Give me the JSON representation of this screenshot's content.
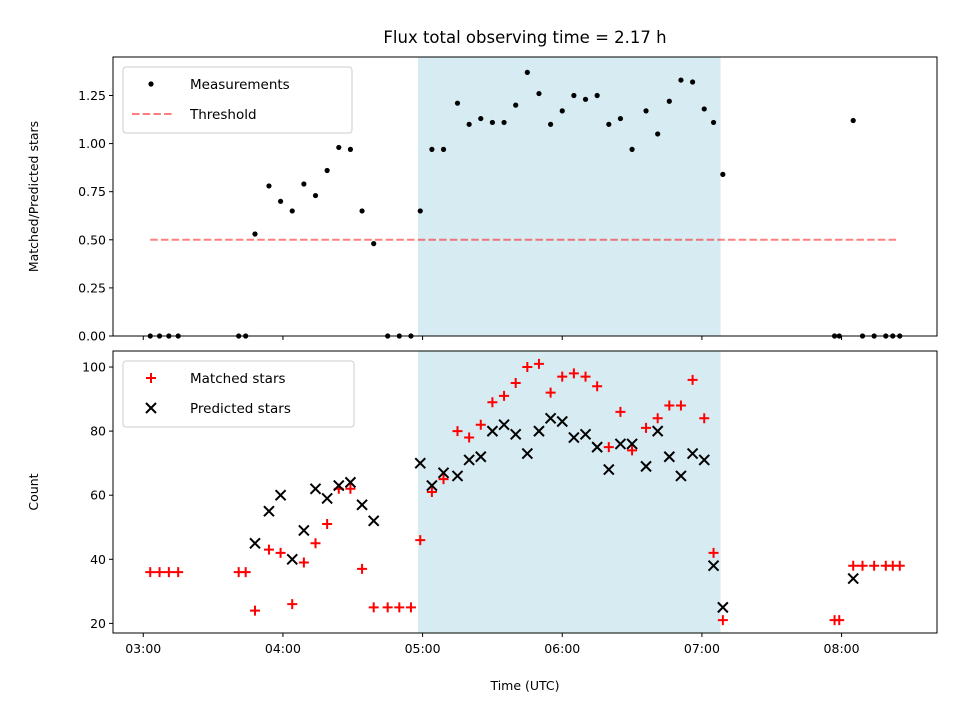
{
  "title": "Flux total observing time = 2.17 h",
  "colors": {
    "shade": "#add8e6",
    "measurement": "#000000",
    "threshold": "#ff0000",
    "matched": "#ff0000",
    "predicted": "#000000"
  },
  "chart_data": [
    {
      "type": "scatter",
      "ylabel": "Matched/Predicted stars",
      "xlim": [
        "02:47",
        "08:41"
      ],
      "ylim": [
        0,
        1.45
      ],
      "yticks": [
        0,
        0.25,
        0.5,
        0.75,
        1.0,
        1.25
      ],
      "ytick_labels": [
        "0.00",
        "0.25",
        "0.50",
        "0.75",
        "1.00",
        "1.25"
      ],
      "shaded_span": [
        "04:58",
        "07:08"
      ],
      "legend": {
        "placement": "upper left",
        "entries": [
          "Measurements",
          "Threshold"
        ]
      },
      "threshold": {
        "name": "Threshold",
        "y": 0.5,
        "x": [
          "03:03",
          "08:24"
        ],
        "style": "dashed"
      },
      "series": [
        {
          "name": "Measurements",
          "points": [
            [
              "03:03",
              0.0
            ],
            [
              "03:07",
              0.0
            ],
            [
              "03:11",
              0.0
            ],
            [
              "03:15",
              0.0
            ],
            [
              "03:41",
              0.0
            ],
            [
              "03:44",
              0.0
            ],
            [
              "03:48",
              0.53
            ],
            [
              "03:54",
              0.78
            ],
            [
              "03:59",
              0.7
            ],
            [
              "04:04",
              0.65
            ],
            [
              "04:09",
              0.79
            ],
            [
              "04:14",
              0.73
            ],
            [
              "04:19",
              0.86
            ],
            [
              "04:24",
              0.98
            ],
            [
              "04:29",
              0.97
            ],
            [
              "04:34",
              0.65
            ],
            [
              "04:39",
              0.48
            ],
            [
              "04:45",
              0.0
            ],
            [
              "04:50",
              0.0
            ],
            [
              "04:55",
              0.0
            ],
            [
              "04:59",
              0.65
            ],
            [
              "05:04",
              0.97
            ],
            [
              "05:09",
              0.97
            ],
            [
              "05:15",
              1.21
            ],
            [
              "05:20",
              1.1
            ],
            [
              "05:25",
              1.13
            ],
            [
              "05:30",
              1.11
            ],
            [
              "05:35",
              1.11
            ],
            [
              "05:40",
              1.2
            ],
            [
              "05:45",
              1.37
            ],
            [
              "05:50",
              1.26
            ],
            [
              "05:55",
              1.1
            ],
            [
              "06:00",
              1.17
            ],
            [
              "06:05",
              1.25
            ],
            [
              "06:10",
              1.23
            ],
            [
              "06:15",
              1.25
            ],
            [
              "06:20",
              1.1
            ],
            [
              "06:25",
              1.13
            ],
            [
              "06:30",
              0.97
            ],
            [
              "06:36",
              1.17
            ],
            [
              "06:41",
              1.05
            ],
            [
              "06:46",
              1.22
            ],
            [
              "06:51",
              1.33
            ],
            [
              "06:56",
              1.32
            ],
            [
              "07:01",
              1.18
            ],
            [
              "07:05",
              1.11
            ],
            [
              "07:09",
              0.84
            ],
            [
              "07:57",
              0.0
            ],
            [
              "07:59",
              0.0
            ],
            [
              "08:05",
              1.12
            ],
            [
              "08:09",
              0.0
            ],
            [
              "08:14",
              0.0
            ],
            [
              "08:19",
              0.0
            ],
            [
              "08:22",
              0.0
            ],
            [
              "08:25",
              0.0
            ]
          ]
        }
      ]
    },
    {
      "type": "scatter",
      "xlabel": "Time (UTC)",
      "ylabel": "Count",
      "xlim": [
        "02:47",
        "08:41"
      ],
      "ylim": [
        17,
        105
      ],
      "xticks": [
        "03:00",
        "04:00",
        "05:00",
        "06:00",
        "07:00",
        "08:00"
      ],
      "xtick_labels": [
        "03:00",
        "04:00",
        "05:00",
        "06:00",
        "07:00",
        "08:00"
      ],
      "yticks": [
        20,
        40,
        60,
        80,
        100
      ],
      "ytick_labels": [
        "20",
        "40",
        "60",
        "80",
        "100"
      ],
      "shaded_span": [
        "04:58",
        "07:08"
      ],
      "legend": {
        "placement": "upper left",
        "entries": [
          "Matched stars",
          "Predicted stars"
        ]
      },
      "series": [
        {
          "name": "Matched stars",
          "marker": "plus",
          "points": [
            [
              "03:03",
              36
            ],
            [
              "03:07",
              36
            ],
            [
              "03:11",
              36
            ],
            [
              "03:15",
              36
            ],
            [
              "03:41",
              36
            ],
            [
              "03:44",
              36
            ],
            [
              "03:48",
              24
            ],
            [
              "03:54",
              43
            ],
            [
              "03:59",
              42
            ],
            [
              "04:04",
              26
            ],
            [
              "04:09",
              39
            ],
            [
              "04:14",
              45
            ],
            [
              "04:19",
              51
            ],
            [
              "04:24",
              62
            ],
            [
              "04:29",
              62
            ],
            [
              "04:34",
              37
            ],
            [
              "04:39",
              25
            ],
            [
              "04:45",
              25
            ],
            [
              "04:50",
              25
            ],
            [
              "04:55",
              25
            ],
            [
              "04:59",
              46
            ],
            [
              "05:04",
              61
            ],
            [
              "05:09",
              65
            ],
            [
              "05:15",
              80
            ],
            [
              "05:20",
              78
            ],
            [
              "05:25",
              82
            ],
            [
              "05:30",
              89
            ],
            [
              "05:35",
              91
            ],
            [
              "05:40",
              95
            ],
            [
              "05:45",
              100
            ],
            [
              "05:50",
              101
            ],
            [
              "05:55",
              92
            ],
            [
              "06:00",
              97
            ],
            [
              "06:05",
              98
            ],
            [
              "06:10",
              97
            ],
            [
              "06:15",
              94
            ],
            [
              "06:20",
              75
            ],
            [
              "06:25",
              86
            ],
            [
              "06:30",
              74
            ],
            [
              "06:36",
              81
            ],
            [
              "06:41",
              84
            ],
            [
              "06:46",
              88
            ],
            [
              "06:51",
              88
            ],
            [
              "06:56",
              96
            ],
            [
              "07:01",
              84
            ],
            [
              "07:05",
              42
            ],
            [
              "07:09",
              21
            ],
            [
              "07:57",
              21
            ],
            [
              "07:59",
              21
            ],
            [
              "08:05",
              38
            ],
            [
              "08:09",
              38
            ],
            [
              "08:14",
              38
            ],
            [
              "08:19",
              38
            ],
            [
              "08:22",
              38
            ],
            [
              "08:25",
              38
            ]
          ]
        },
        {
          "name": "Predicted stars",
          "marker": "x",
          "points": [
            [
              "03:48",
              45
            ],
            [
              "03:54",
              55
            ],
            [
              "03:59",
              60
            ],
            [
              "04:04",
              40
            ],
            [
              "04:09",
              49
            ],
            [
              "04:14",
              62
            ],
            [
              "04:19",
              59
            ],
            [
              "04:24",
              63
            ],
            [
              "04:29",
              64
            ],
            [
              "04:34",
              57
            ],
            [
              "04:39",
              52
            ],
            [
              "04:59",
              70
            ],
            [
              "05:04",
              63
            ],
            [
              "05:09",
              67
            ],
            [
              "05:15",
              66
            ],
            [
              "05:20",
              71
            ],
            [
              "05:25",
              72
            ],
            [
              "05:30",
              80
            ],
            [
              "05:35",
              82
            ],
            [
              "05:40",
              79
            ],
            [
              "05:45",
              73
            ],
            [
              "05:50",
              80
            ],
            [
              "05:55",
              84
            ],
            [
              "06:00",
              83
            ],
            [
              "06:05",
              78
            ],
            [
              "06:10",
              79
            ],
            [
              "06:15",
              75
            ],
            [
              "06:20",
              68
            ],
            [
              "06:25",
              76
            ],
            [
              "06:30",
              76
            ],
            [
              "06:36",
              69
            ],
            [
              "06:41",
              80
            ],
            [
              "06:46",
              72
            ],
            [
              "06:51",
              66
            ],
            [
              "06:56",
              73
            ],
            [
              "07:01",
              71
            ],
            [
              "07:05",
              38
            ],
            [
              "07:09",
              25
            ],
            [
              "08:05",
              34
            ]
          ]
        }
      ]
    }
  ]
}
